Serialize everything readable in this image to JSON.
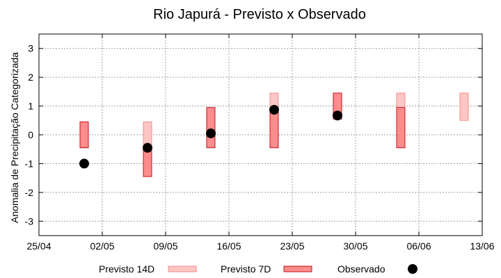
{
  "chart_data": {
    "type": "bar",
    "title": "Rio Japurá - Previsto x Observado",
    "xlabel": "",
    "ylabel": "Anomalia de Precipitação Categorizada",
    "ylim": [
      -3.5,
      3.5
    ],
    "yticks": [
      3,
      2,
      1,
      0,
      -1,
      -2,
      -3
    ],
    "ytick_labels": [
      "3",
      "2",
      "1",
      "0",
      "-1",
      "-2",
      "-3"
    ],
    "xlim": [
      "2023-04-25",
      "2023-06-13"
    ],
    "xticks": [
      "2023-04-25",
      "2023-05-02",
      "2023-05-09",
      "2023-05-16",
      "2023-05-23",
      "2023-05-30",
      "2023-06-06",
      "2023-06-13"
    ],
    "xtick_labels": [
      "25/04",
      "02/05",
      "09/05",
      "16/05",
      "23/05",
      "30/05",
      "06/06",
      "13/06"
    ],
    "grid": true,
    "legend": "bottom",
    "series": [
      {
        "name": "Previsto 14D",
        "color": "#fdc6c4",
        "edge": "#f08f8a",
        "ranges": [
          {
            "date": "2023-04-30",
            "low": -0.45,
            "high": 0.45
          },
          {
            "date": "2023-05-07",
            "low": -0.45,
            "high": 0.45
          },
          {
            "date": "2023-05-21",
            "low": 0.45,
            "high": 1.45
          },
          {
            "date": "2023-06-04",
            "low": 0.45,
            "high": 1.45
          },
          {
            "date": "2023-06-11",
            "low": 0.5,
            "high": 1.45
          }
        ]
      },
      {
        "name": "Previsto 7D",
        "color": "#fd8c8c",
        "edge": "#c0141e",
        "ranges": [
          {
            "date": "2023-04-30",
            "low": -0.45,
            "high": 0.45
          },
          {
            "date": "2023-05-07",
            "low": -1.45,
            "high": -0.45
          },
          {
            "date": "2023-05-14",
            "low": -0.45,
            "high": 0.95
          },
          {
            "date": "2023-05-21",
            "low": -0.45,
            "high": 0.95
          },
          {
            "date": "2023-05-28",
            "low": 0.55,
            "high": 1.45
          },
          {
            "date": "2023-06-04",
            "low": -0.45,
            "high": 0.95
          }
        ]
      },
      {
        "name": "Observado",
        "color": "#000000",
        "points": [
          {
            "date": "2023-04-30",
            "value": -1.0
          },
          {
            "date": "2023-05-07",
            "value": -0.45
          },
          {
            "date": "2023-05-14",
            "value": 0.05
          },
          {
            "date": "2023-05-21",
            "value": 0.87
          },
          {
            "date": "2023-05-28",
            "value": 0.67
          }
        ]
      }
    ]
  }
}
